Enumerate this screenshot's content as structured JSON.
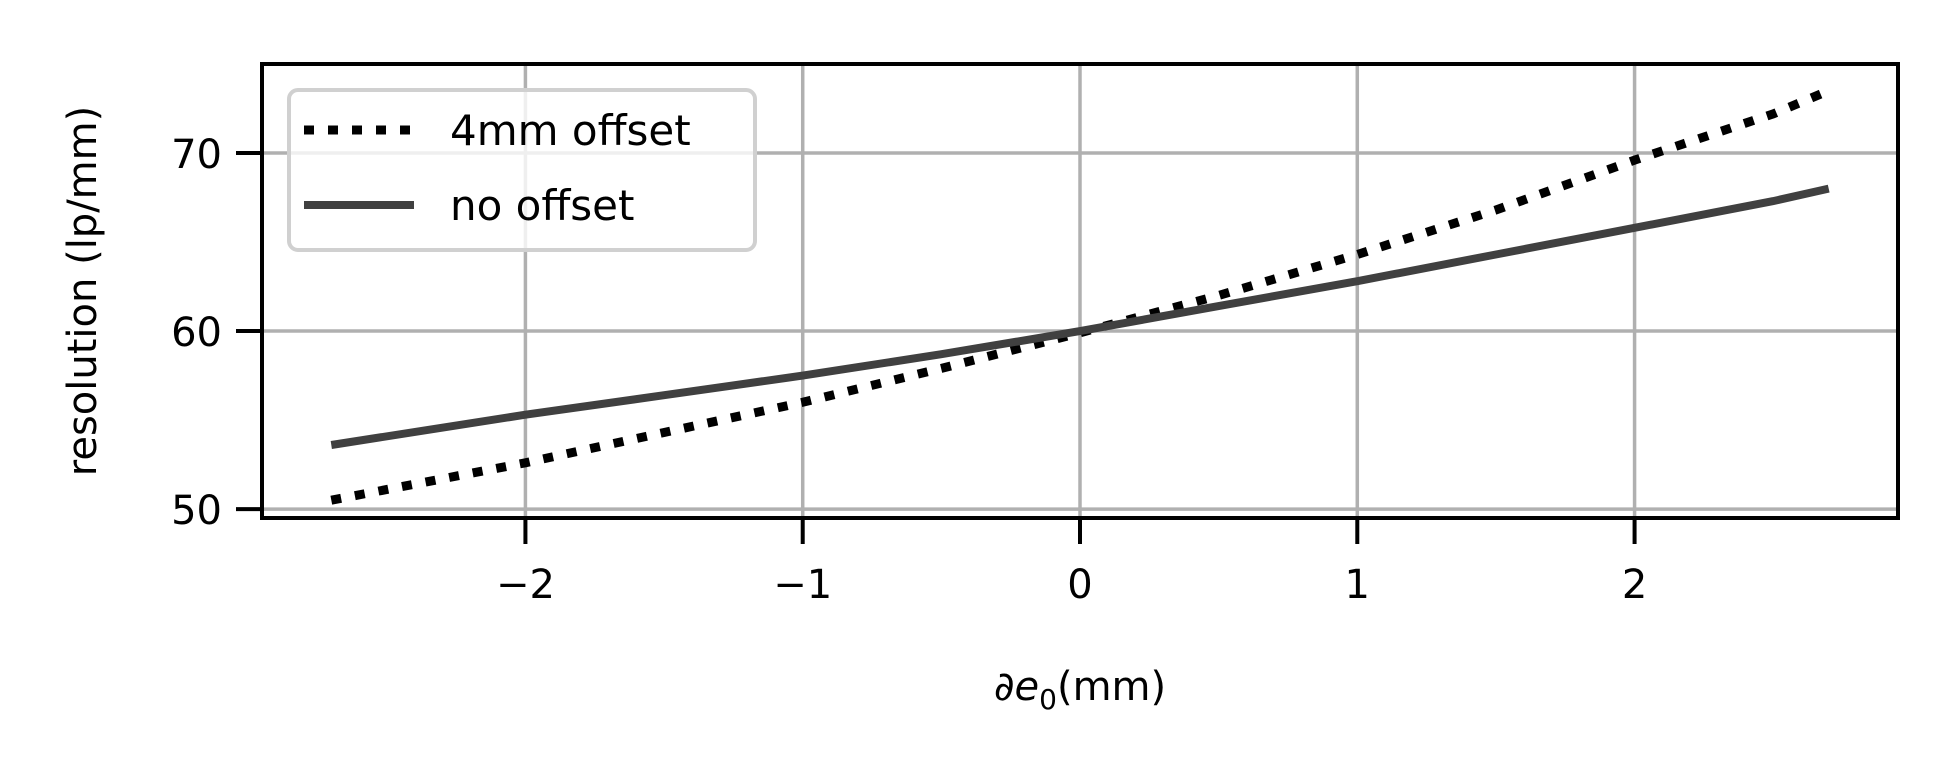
{
  "chart_data": {
    "type": "line",
    "title": "",
    "xlabel": "∂e0(mm)",
    "xlabel_parts": {
      "symbol": "∂e",
      "subscript": "0",
      "unit": "(mm)"
    },
    "ylabel": "resolution (lp/mm)",
    "xlim": [
      -2.95,
      2.95
    ],
    "ylim": [
      49.5,
      75
    ],
    "xticks": [
      -2,
      -1,
      0,
      1,
      2
    ],
    "xtick_labels": [
      "−2",
      "−1",
      "0",
      "1",
      "2"
    ],
    "yticks": [
      50,
      60,
      70
    ],
    "ytick_labels": [
      "50",
      "60",
      "70"
    ],
    "grid": true,
    "legend": "top-left",
    "series": [
      {
        "name": "4mm offset",
        "style": "dotted",
        "color": "#000000",
        "x": [
          -2.7,
          -2.0,
          -1.5,
          -1.0,
          -0.5,
          0.0,
          0.5,
          1.0,
          1.5,
          2.0,
          2.5,
          2.7
        ],
        "y": [
          50.5,
          52.6,
          54.3,
          56.0,
          57.9,
          59.9,
          62.0,
          64.3,
          66.8,
          69.6,
          72.2,
          73.5
        ]
      },
      {
        "name": "no offset",
        "style": "solid",
        "color": "#404040",
        "x": [
          -2.7,
          -2.0,
          -1.5,
          -1.0,
          -0.5,
          0.0,
          0.5,
          1.0,
          1.5,
          2.0,
          2.5,
          2.7
        ],
        "y": [
          53.6,
          55.3,
          56.4,
          57.5,
          58.7,
          60.0,
          61.4,
          62.8,
          64.3,
          65.8,
          67.3,
          68.0
        ]
      }
    ]
  }
}
